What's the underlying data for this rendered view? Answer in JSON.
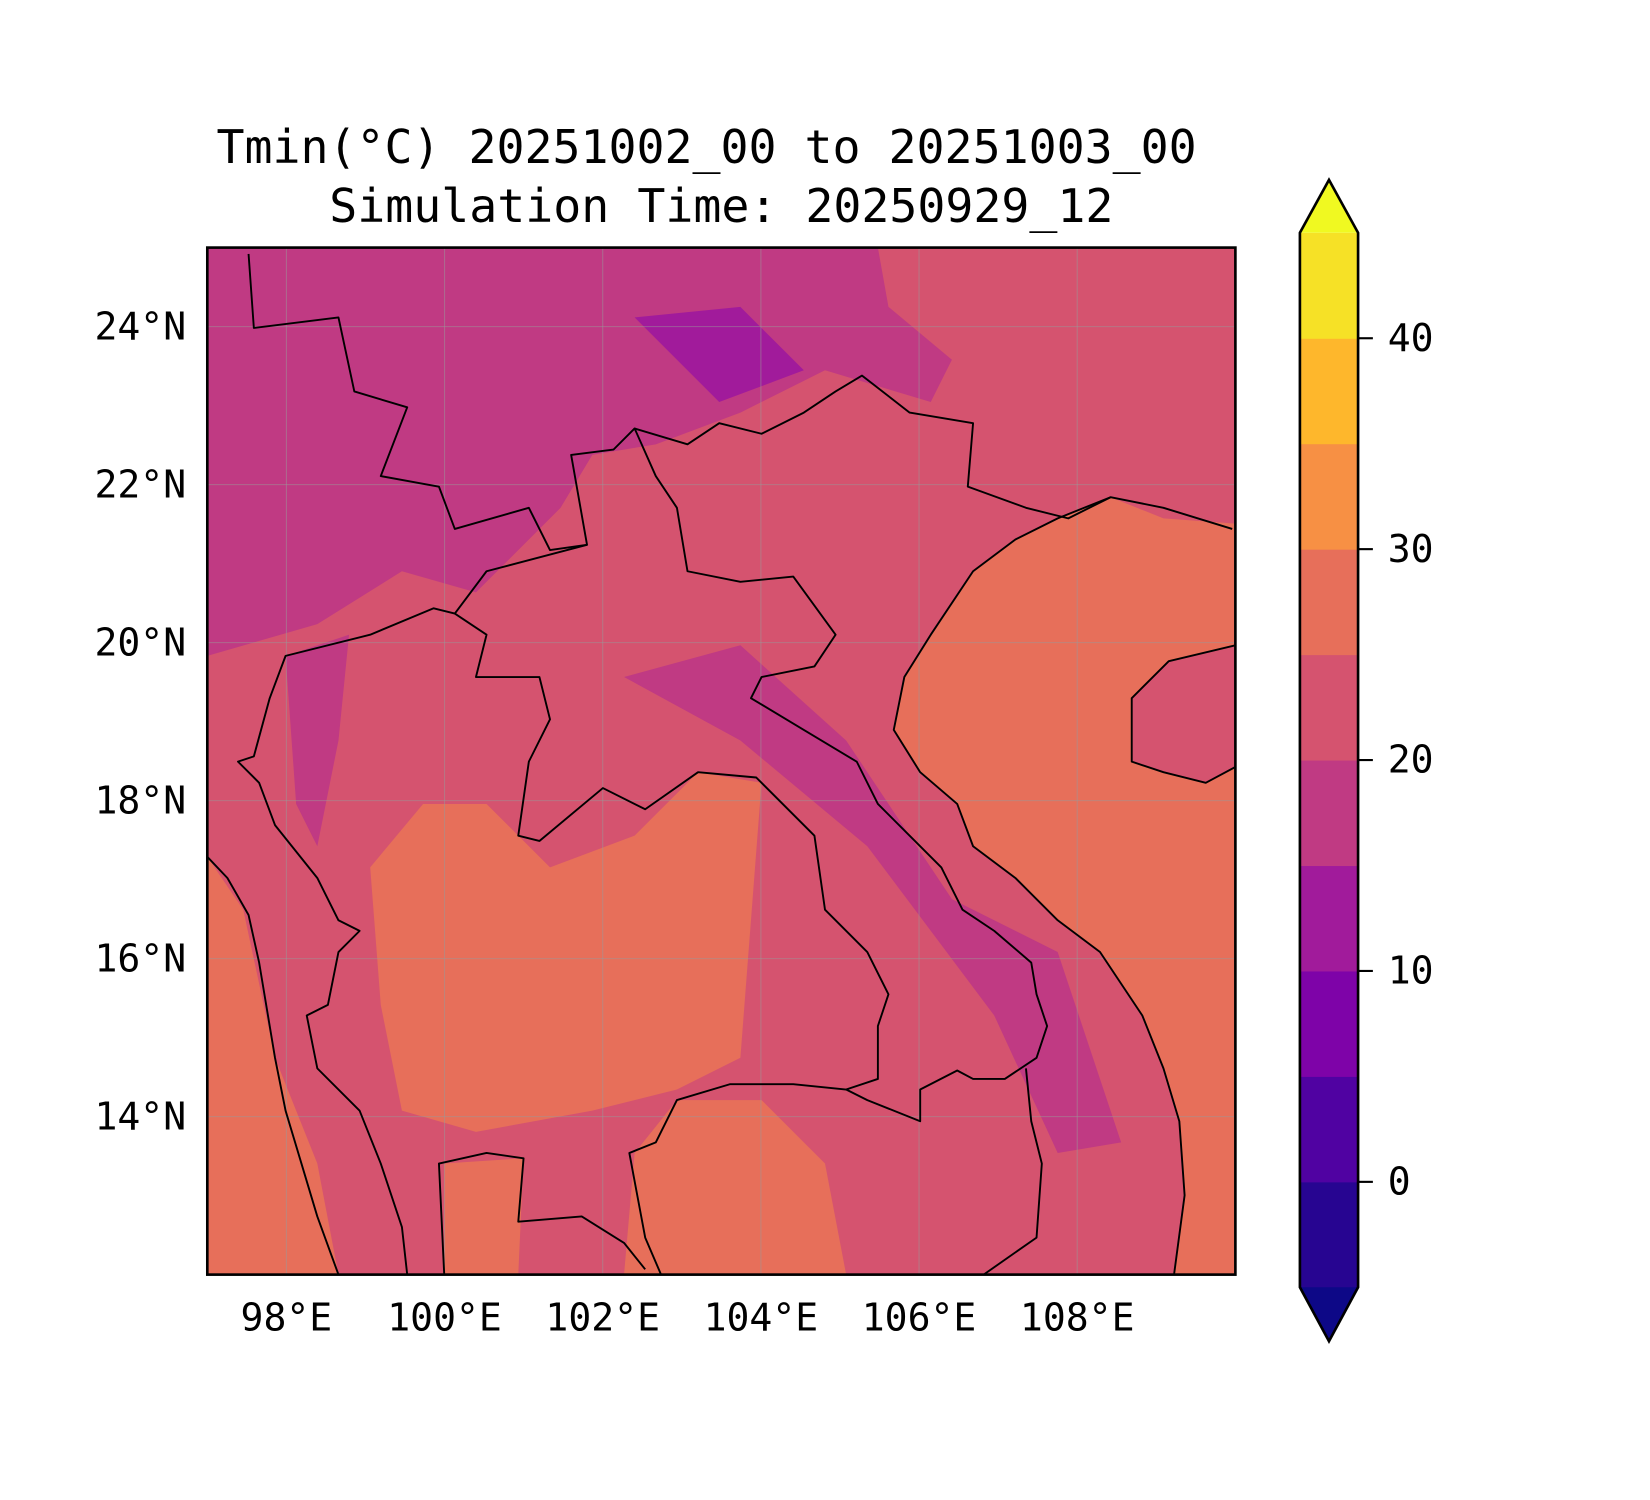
{
  "chart_data": {
    "type": "heatmap",
    "title": "Tmin(°C) 20251002_00 to 20251003_00",
    "subtitle": "Simulation Time: 20250929_12",
    "variable": "Tmin",
    "units": "°C",
    "lon_range": [
      97,
      110
    ],
    "lat_range": [
      12,
      25
    ],
    "x_ticks": [
      98,
      100,
      102,
      104,
      106,
      108
    ],
    "x_tick_labels": [
      "98°E",
      "100°E",
      "102°E",
      "104°E",
      "106°E",
      "108°E"
    ],
    "y_ticks": [
      14,
      16,
      18,
      20,
      22,
      24
    ],
    "y_tick_labels": [
      "14°N",
      "16°N",
      "18°N",
      "20°N",
      "22°N",
      "24°N"
    ],
    "grid": true,
    "colorbar": {
      "position": "right",
      "extend": "both",
      "levels": [
        -5,
        0,
        5,
        10,
        15,
        20,
        25,
        30,
        35,
        40,
        45
      ],
      "ticks": [
        0,
        10,
        20,
        30,
        40
      ],
      "tick_labels": [
        "0",
        "10",
        "20",
        "30",
        "40"
      ],
      "colors": [
        "#270591",
        "#5002a2",
        "#7e03a8",
        "#a11b9b",
        "#c03a83",
        "#d5536f",
        "#e76f5a",
        "#f79044",
        "#feb72c",
        "#f6e126"
      ],
      "under_color": "#0d0887",
      "over_color": "#f0f921"
    },
    "summary": {
      "sea_range": "25–30",
      "lowlands_range": "25–30",
      "highlands_range": "15–25"
    }
  }
}
